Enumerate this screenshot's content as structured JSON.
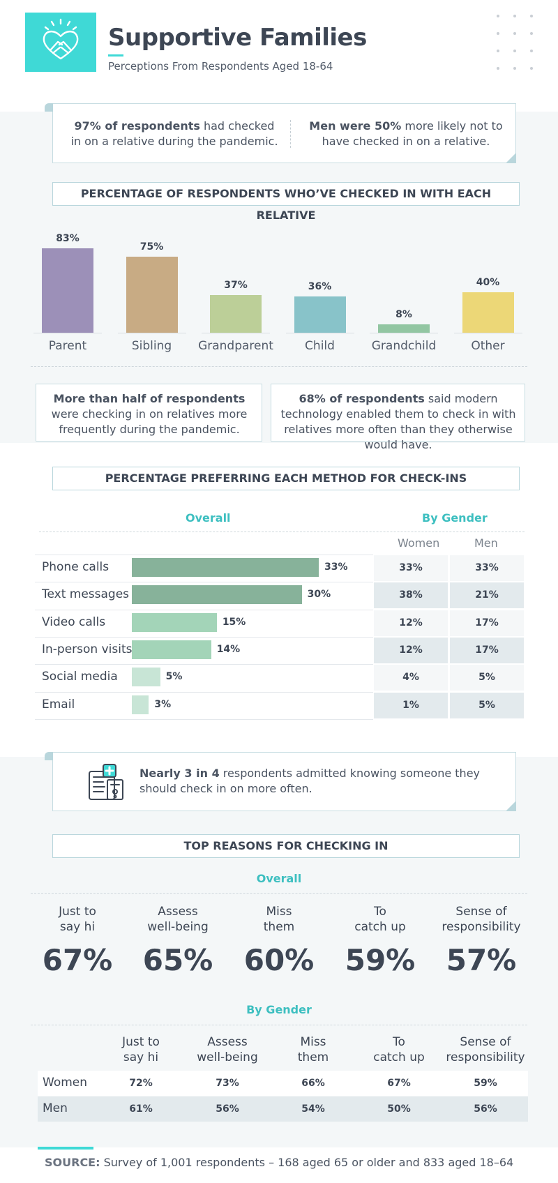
{
  "header": {
    "title": "Supportive Families",
    "subtitle": "Perceptions From Respondents Aged 18-64",
    "logo_icon": "heart-hands-icon",
    "accent": "#3fd9d6"
  },
  "callout1": {
    "left_bold": "97% of respondents",
    "left_rest": "had checked in on a relative during the pandemic.",
    "right_bold": "Men were 50%",
    "right_rest": "more likely not to have checked in on a relative."
  },
  "relatives_section": {
    "title": "PERCENTAGE OF RESPONDENTS WHO’VE CHECKED IN WITH EACH RELATIVE"
  },
  "chart_data": [
    {
      "type": "bar",
      "title": "PERCENTAGE OF RESPONDENTS WHO’VE CHECKED IN WITH EACH RELATIVE",
      "categories": [
        "Parent",
        "Sibling",
        "Grandparent",
        "Child",
        "Grandchild",
        "Other"
      ],
      "values": [
        83,
        75,
        37,
        36,
        8,
        40
      ],
      "labels": [
        "83%",
        "75%",
        "37%",
        "36%",
        "8%",
        "40%"
      ],
      "colors": [
        "#9c90b8",
        "#c8ab84",
        "#bccf98",
        "#88c3c9",
        "#92c6a2",
        "#ecd777"
      ],
      "ylim": [
        0,
        100
      ],
      "grid": false
    },
    {
      "type": "bar",
      "orientation": "horizontal",
      "title": "PERCENTAGE PREFERRING EACH METHOD FOR CHECK-INS",
      "subtitle": "Overall",
      "categories": [
        "Phone calls",
        "Text messages",
        "Video calls",
        "In-person visits",
        "Social media",
        "Email"
      ],
      "values": [
        33,
        30,
        15,
        14,
        5,
        3
      ],
      "labels": [
        "33%",
        "30%",
        "15%",
        "14%",
        "5%",
        "3%"
      ],
      "colors": [
        "#87b29a",
        "#87b29a",
        "#a3d4b8",
        "#a3d4b8",
        "#c8e5d6",
        "#c8e5d6"
      ],
      "xlim": [
        0,
        33
      ]
    },
    {
      "type": "table",
      "title": "By Gender",
      "columns": [
        "Women",
        "Men"
      ],
      "rows": [
        "Phone calls",
        "Text messages",
        "Video calls",
        "In-person visits",
        "Social media",
        "Email"
      ],
      "values": [
        [
          "33%",
          "33%"
        ],
        [
          "38%",
          "21%"
        ],
        [
          "12%",
          "17%"
        ],
        [
          "12%",
          "17%"
        ],
        [
          "4%",
          "5%"
        ],
        [
          "1%",
          "5%"
        ]
      ]
    },
    {
      "type": "table",
      "title": "TOP REASONS FOR CHECKING IN",
      "subtitle": "Overall",
      "columns": [
        "Just to say hi",
        "Assess well-being",
        "Miss them",
        "To catch up",
        "Sense of responsibility"
      ],
      "values": [
        "67%",
        "65%",
        "60%",
        "59%",
        "57%"
      ]
    },
    {
      "type": "table",
      "title": "By Gender",
      "columns": [
        "Just to say hi",
        "Assess well-being",
        "Miss them",
        "To catch up",
        "Sense of responsibility"
      ],
      "rows": [
        "Women",
        "Men"
      ],
      "values": [
        [
          "72%",
          "73%",
          "66%",
          "67%",
          "59%"
        ],
        [
          "61%",
          "56%",
          "54%",
          "50%",
          "56%"
        ]
      ]
    }
  ],
  "callout2": {
    "left_bold": "More than half of respondents",
    "left_rest": "were checking in on relatives more frequently during the pandemic.",
    "right_bold": "68% of respondents",
    "right_rest": "said modern technology enabled them to check in with relatives more often than they otherwise would have."
  },
  "methods_section": {
    "title": "PERCENTAGE PREFERRING EACH METHOD FOR CHECK-INS",
    "overall_label": "Overall",
    "gender_label": "By Gender",
    "women_label": "Women",
    "men_label": "Men"
  },
  "callout3": {
    "icon": "medical-chart-icon",
    "bold": "Nearly 3 in 4",
    "rest": "respondents admitted knowing someone they should check in on more often."
  },
  "reasons_section": {
    "title": "TOP REASONS FOR CHECKING IN",
    "overall_label": "Overall",
    "gender_label": "By Gender",
    "reasons": [
      {
        "line1": "Just to",
        "line2": "say hi",
        "pct": "67%"
      },
      {
        "line1": "Assess",
        "line2": "well-being",
        "pct": "65%"
      },
      {
        "line1": "Miss",
        "line2": "them",
        "pct": "60%"
      },
      {
        "line1": "To",
        "line2": "catch up",
        "pct": "59%"
      },
      {
        "line1": "Sense of",
        "line2": "responsibility",
        "pct": "57%"
      }
    ],
    "gender_rows": [
      {
        "label": "Women",
        "values": [
          "72%",
          "73%",
          "66%",
          "67%",
          "59%"
        ]
      },
      {
        "label": "Men",
        "values": [
          "61%",
          "56%",
          "54%",
          "50%",
          "56%"
        ]
      }
    ]
  },
  "footer": {
    "source_label": "SOURCE:",
    "source_text": "Survey of 1,001 respondents – 168 aged 65 or older and 833 aged 18–64"
  }
}
